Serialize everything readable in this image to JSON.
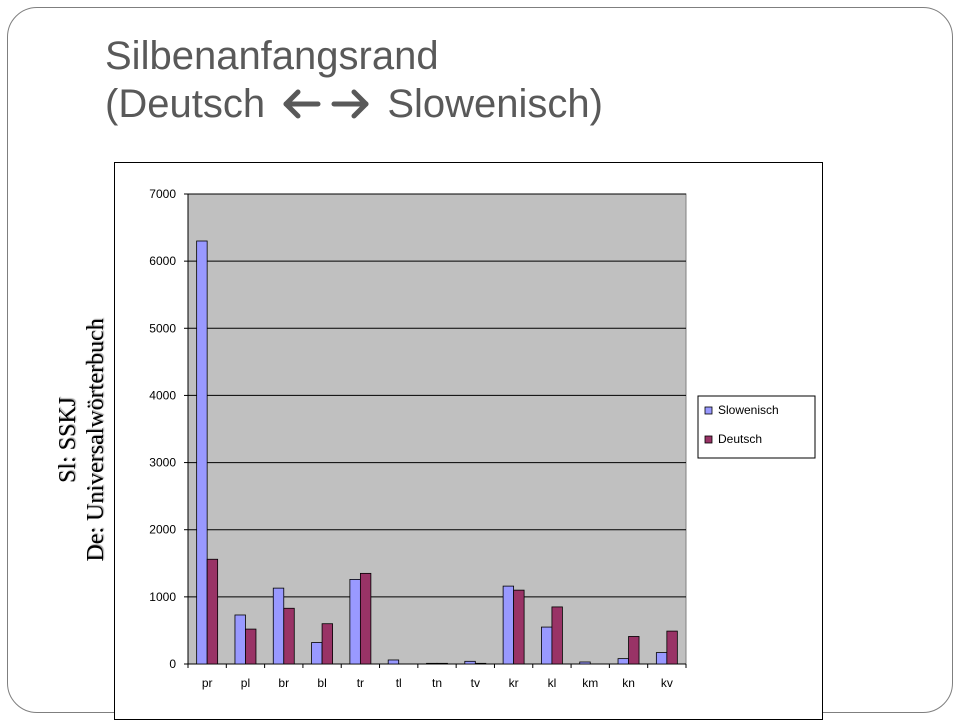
{
  "slide": {
    "title_line1": "Silbenanfangsrand",
    "title_line2_left": "(Deutsch",
    "title_line2_right": "Slowenisch)",
    "arrow_icon": "left-right-arrow-icon",
    "side_label_line1": "Sl: SSKJ",
    "side_label_line2": "De: Universalwörterbuch"
  },
  "chart_data": {
    "type": "bar",
    "title": "",
    "xlabel": "",
    "ylabel": "",
    "ylim": [
      0,
      7000
    ],
    "yticks": [
      0,
      1000,
      2000,
      3000,
      4000,
      5000,
      6000,
      7000
    ],
    "grid": true,
    "legend_position": "right",
    "categories": [
      "pr",
      "pl",
      "br",
      "bl",
      "tr",
      "tl",
      "tn",
      "tv",
      "kr",
      "kl",
      "km",
      "kn",
      "kv"
    ],
    "series": [
      {
        "name": "Slowenisch",
        "color": "#9999ff",
        "values": [
          6300,
          730,
          1130,
          320,
          1260,
          60,
          10,
          40,
          1160,
          550,
          30,
          80,
          170
        ]
      },
      {
        "name": "Deutsch",
        "color": "#993366",
        "values": [
          1560,
          520,
          830,
          600,
          1350,
          0,
          10,
          10,
          1100,
          850,
          0,
          410,
          490
        ]
      }
    ],
    "plot_background": "#c0c0c0"
  }
}
